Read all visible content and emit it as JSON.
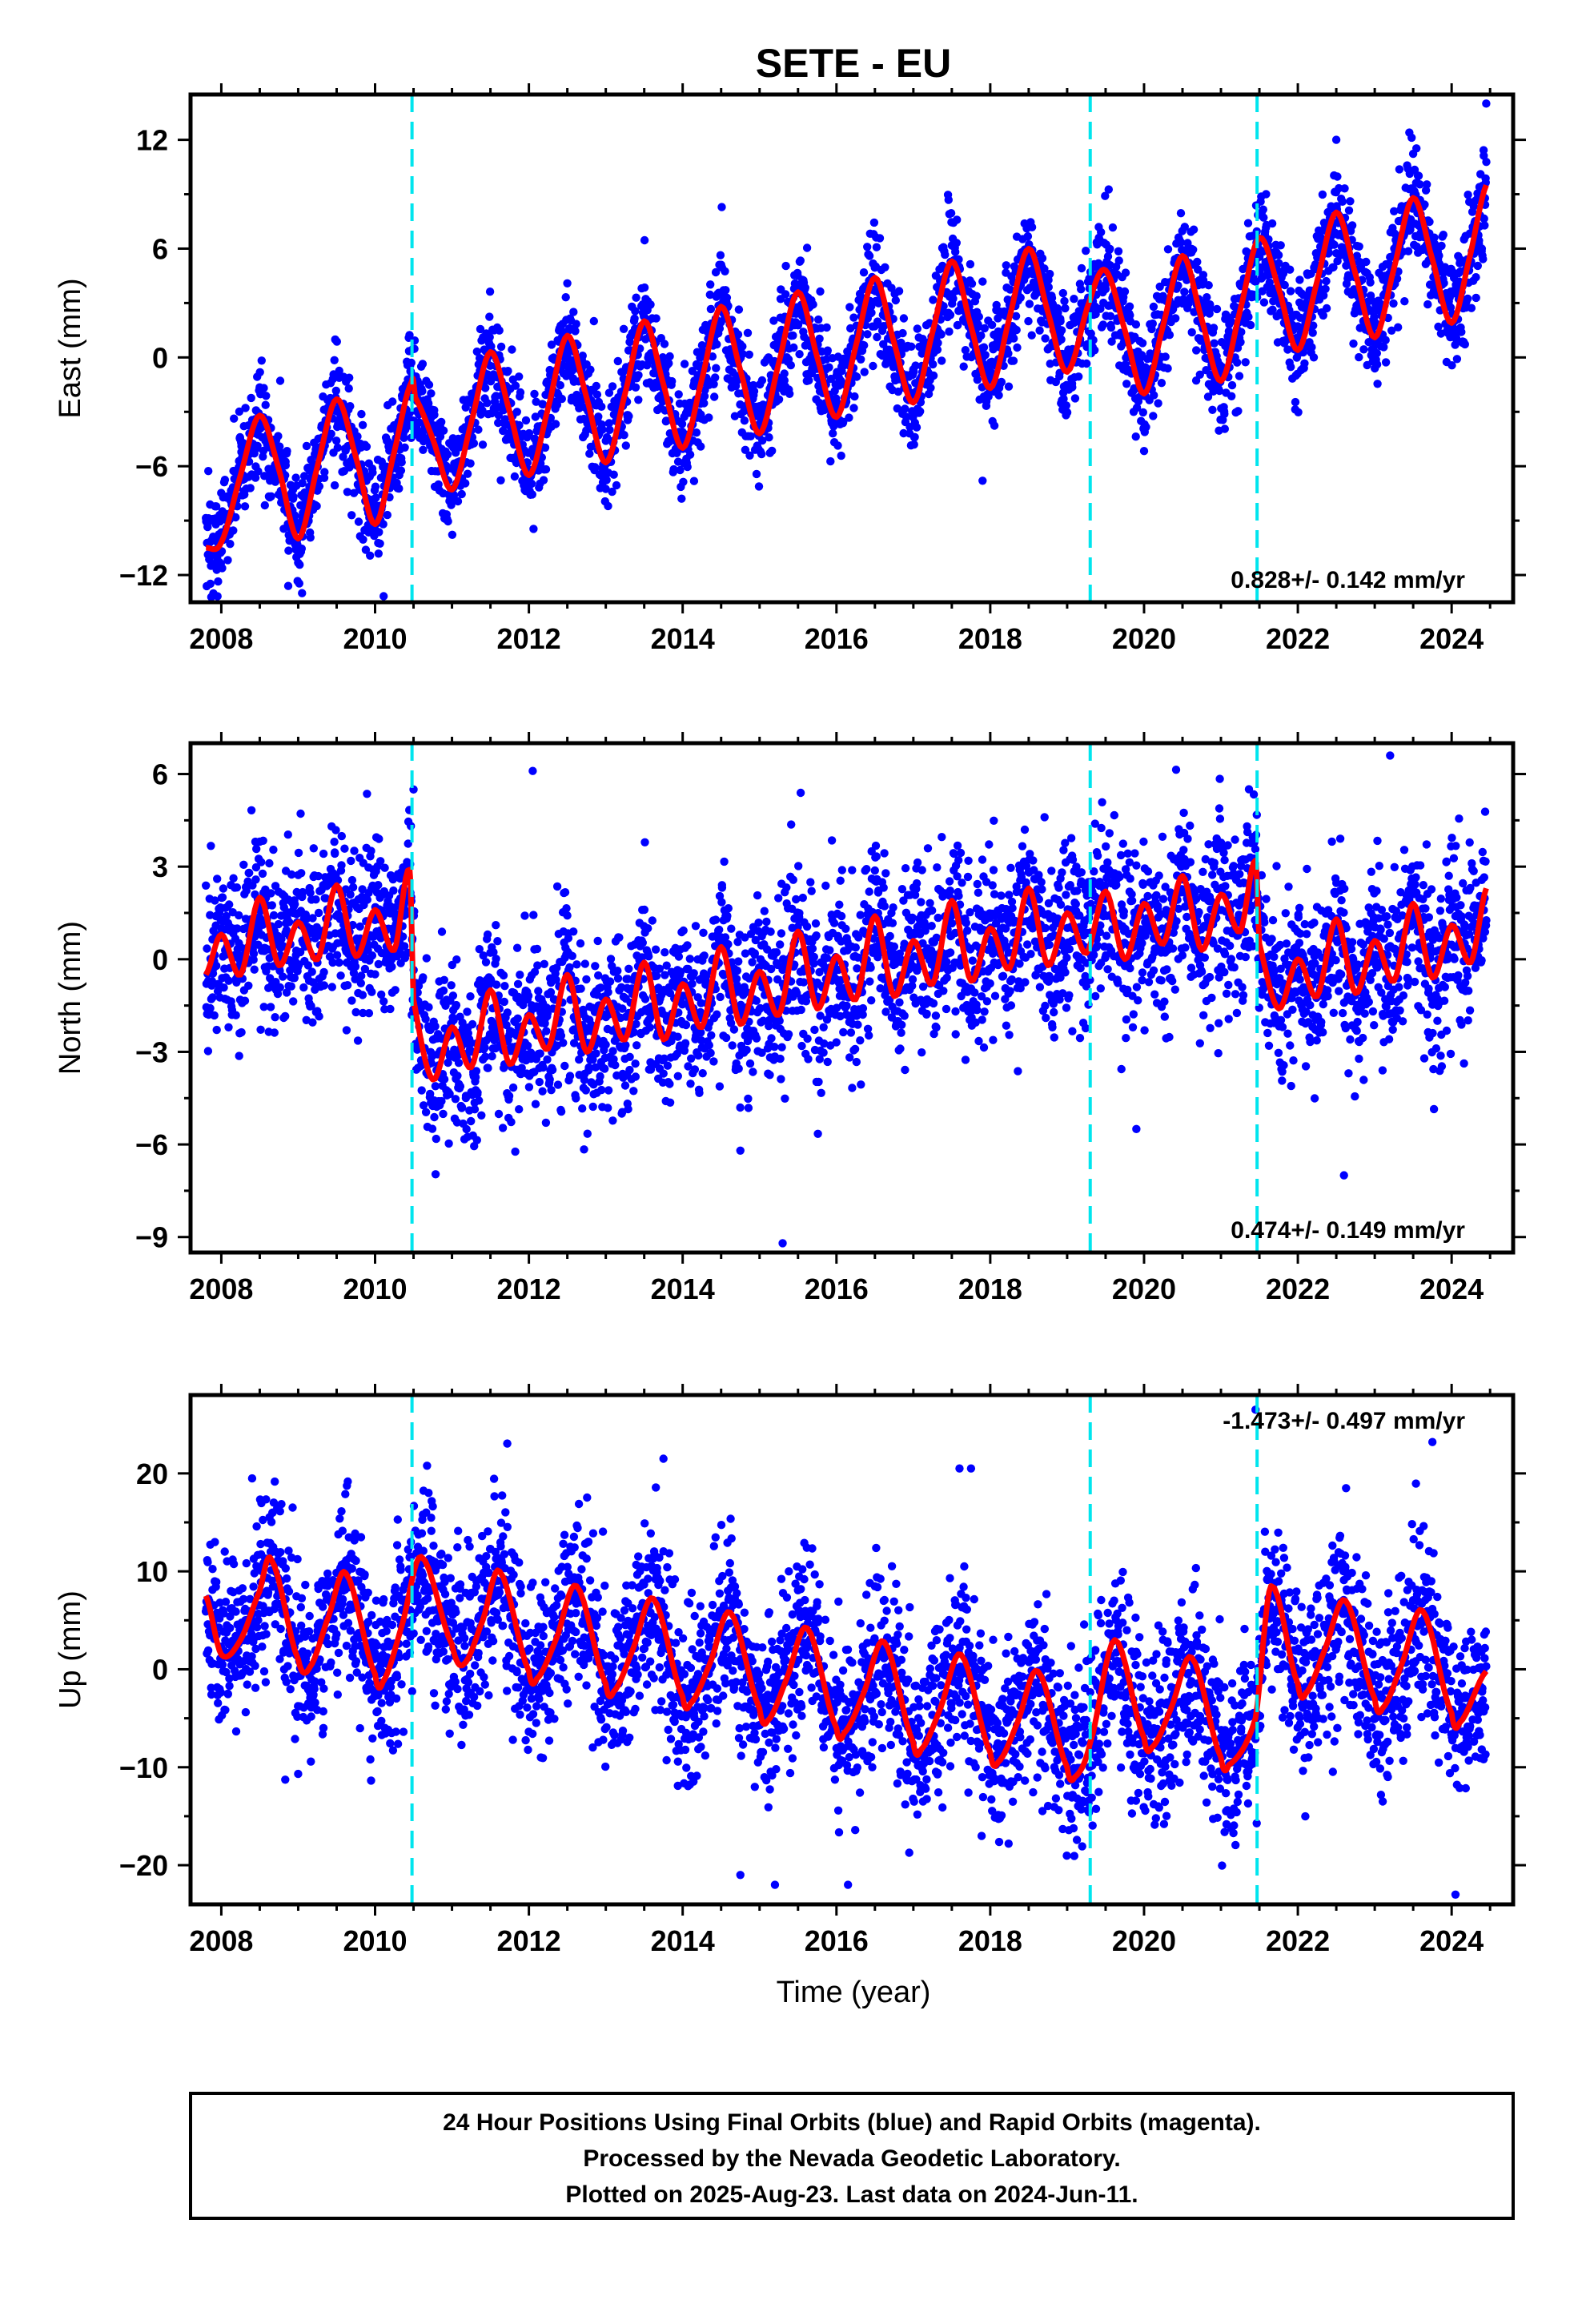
{
  "figure": {
    "title": "SETE - EU",
    "xlabel": "Time (year)",
    "footer": [
      "24 Hour Positions Using Final Orbits (blue) and Rapid Orbits (magenta).",
      "Processed by the Nevada Geodetic Laboratory.",
      "Plotted on 2025-Aug-23. Last data on 2024-Jun-11."
    ]
  },
  "colors": {
    "observations": "#0000ff",
    "model": "#ff0000",
    "steps": "#00e5ee",
    "axes": "#000000"
  },
  "chart_data": [
    {
      "type": "scatter",
      "panel": "east",
      "ylabel": "East (mm)",
      "rate_label": "0.828+/- 0.142 mm/yr",
      "rate_position": "bottom-right",
      "xlim": [
        2007.6,
        2024.8
      ],
      "ylim": [
        -13.5,
        14.5
      ],
      "x_ticks": [
        "2008",
        "2010",
        "2012",
        "2014",
        "2016",
        "2018",
        "2020",
        "2022",
        "2024"
      ],
      "y_ticks": [
        12,
        6,
        0,
        -6,
        -12
      ],
      "y_tick_labels": [
        "12",
        "6",
        "0",
        "−6",
        "−12"
      ],
      "step_epochs": [
        2010.48,
        2019.3,
        2021.47
      ],
      "model_curve": [
        [
          2007.8,
          -10.5
        ],
        [
          2008.0,
          -10.2
        ],
        [
          2008.25,
          -6.5
        ],
        [
          2008.5,
          -3.2
        ],
        [
          2008.75,
          -6.2
        ],
        [
          2009.0,
          -10.0
        ],
        [
          2009.25,
          -6.0
        ],
        [
          2009.5,
          -2.3
        ],
        [
          2009.75,
          -5.5
        ],
        [
          2010.0,
          -9.2
        ],
        [
          2010.25,
          -5.2
        ],
        [
          2010.48,
          -1.3
        ],
        [
          2010.52,
          -2.2
        ],
        [
          2010.75,
          -4.5
        ],
        [
          2011.0,
          -7.3
        ],
        [
          2011.25,
          -3.6
        ],
        [
          2011.5,
          0.3
        ],
        [
          2011.75,
          -3.0
        ],
        [
          2012.0,
          -6.5
        ],
        [
          2012.25,
          -2.8
        ],
        [
          2012.5,
          1.2
        ],
        [
          2012.75,
          -2.2
        ],
        [
          2013.0,
          -5.8
        ],
        [
          2013.25,
          -2.0
        ],
        [
          2013.5,
          2.0
        ],
        [
          2013.75,
          -1.5
        ],
        [
          2014.0,
          -5.0
        ],
        [
          2014.25,
          -1.2
        ],
        [
          2014.5,
          2.8
        ],
        [
          2014.75,
          -0.7
        ],
        [
          2015.0,
          -4.2
        ],
        [
          2015.25,
          -0.3
        ],
        [
          2015.5,
          3.6
        ],
        [
          2015.75,
          0.0
        ],
        [
          2016.0,
          -3.3
        ],
        [
          2016.25,
          0.6
        ],
        [
          2016.5,
          4.4
        ],
        [
          2016.75,
          0.8
        ],
        [
          2017.0,
          -2.5
        ],
        [
          2017.25,
          1.4
        ],
        [
          2017.5,
          5.3
        ],
        [
          2017.75,
          1.7
        ],
        [
          2018.0,
          -1.7
        ],
        [
          2018.25,
          2.2
        ],
        [
          2018.5,
          6.0
        ],
        [
          2018.75,
          2.5
        ],
        [
          2019.0,
          -0.8
        ],
        [
          2019.3,
          3.2
        ],
        [
          2019.5,
          4.8
        ],
        [
          2019.75,
          1.5
        ],
        [
          2020.0,
          -2.0
        ],
        [
          2020.25,
          1.8
        ],
        [
          2020.5,
          5.6
        ],
        [
          2020.75,
          2.1
        ],
        [
          2021.0,
          -1.3
        ],
        [
          2021.25,
          2.6
        ],
        [
          2021.5,
          6.6
        ],
        [
          2021.75,
          3.8
        ],
        [
          2022.0,
          0.4
        ],
        [
          2022.25,
          4.2
        ],
        [
          2022.5,
          8.0
        ],
        [
          2022.75,
          4.6
        ],
        [
          2023.0,
          1.1
        ],
        [
          2023.25,
          4.9
        ],
        [
          2023.5,
          8.8
        ],
        [
          2023.75,
          5.4
        ],
        [
          2024.0,
          1.9
        ],
        [
          2024.25,
          5.8
        ],
        [
          2024.45,
          9.5
        ]
      ],
      "trend": {
        "start": [
          2007.8,
          -10.5
        ],
        "end": [
          2024.45,
          5.5
        ]
      },
      "seasonal_amplitude_mm": 3.5,
      "scatter_mm": 1.5,
      "outliers": [
        [
          2024.45,
          14.0
        ],
        [
          2022.5,
          12.0
        ],
        [
          2023.45,
          12.4
        ],
        [
          2009.05,
          -13.0
        ],
        [
          2017.9,
          -6.8
        ]
      ]
    },
    {
      "type": "scatter",
      "panel": "north",
      "ylabel": "North (mm)",
      "rate_label": "0.474+/- 0.149 mm/yr",
      "rate_position": "bottom-right",
      "xlim": [
        2007.6,
        2024.8
      ],
      "ylim": [
        -9.5,
        7.0
      ],
      "x_ticks": [
        "2008",
        "2010",
        "2012",
        "2014",
        "2016",
        "2018",
        "2020",
        "2022",
        "2024"
      ],
      "y_ticks": [
        6,
        3,
        0,
        -3,
        -6,
        -9
      ],
      "y_tick_labels": [
        "6",
        "3",
        "0",
        "−3",
        "−6",
        "−9"
      ],
      "step_epochs": [
        2010.48,
        2019.3,
        2021.47
      ],
      "model_curve": [
        [
          2007.8,
          -0.5
        ],
        [
          2008.0,
          0.8
        ],
        [
          2008.25,
          -0.5
        ],
        [
          2008.5,
          2.0
        ],
        [
          2008.75,
          -0.2
        ],
        [
          2009.0,
          1.2
        ],
        [
          2009.25,
          0.0
        ],
        [
          2009.5,
          2.4
        ],
        [
          2009.75,
          0.1
        ],
        [
          2010.0,
          1.6
        ],
        [
          2010.25,
          0.3
        ],
        [
          2010.45,
          2.9
        ],
        [
          2010.5,
          -1.3
        ],
        [
          2010.75,
          -3.9
        ],
        [
          2011.0,
          -2.2
        ],
        [
          2011.25,
          -3.5
        ],
        [
          2011.5,
          -1.0
        ],
        [
          2011.75,
          -3.4
        ],
        [
          2012.0,
          -1.8
        ],
        [
          2012.25,
          -2.9
        ],
        [
          2012.5,
          -0.5
        ],
        [
          2012.75,
          -3.0
        ],
        [
          2013.0,
          -1.3
        ],
        [
          2013.25,
          -2.6
        ],
        [
          2013.5,
          -0.1
        ],
        [
          2013.75,
          -2.6
        ],
        [
          2014.0,
          -0.8
        ],
        [
          2014.25,
          -2.2
        ],
        [
          2014.5,
          0.4
        ],
        [
          2014.75,
          -2.1
        ],
        [
          2015.0,
          -0.4
        ],
        [
          2015.25,
          -1.8
        ],
        [
          2015.5,
          0.9
        ],
        [
          2015.75,
          -1.6
        ],
        [
          2016.0,
          0.1
        ],
        [
          2016.25,
          -1.3
        ],
        [
          2016.5,
          1.4
        ],
        [
          2016.75,
          -1.2
        ],
        [
          2017.0,
          0.6
        ],
        [
          2017.25,
          -0.8
        ],
        [
          2017.5,
          1.9
        ],
        [
          2017.75,
          -0.7
        ],
        [
          2018.0,
          1.0
        ],
        [
          2018.25,
          -0.3
        ],
        [
          2018.5,
          2.3
        ],
        [
          2018.75,
          -0.2
        ],
        [
          2019.0,
          1.5
        ],
        [
          2019.25,
          0.2
        ],
        [
          2019.5,
          2.2
        ],
        [
          2019.75,
          0.0
        ],
        [
          2020.0,
          1.8
        ],
        [
          2020.25,
          0.5
        ],
        [
          2020.5,
          2.7
        ],
        [
          2020.75,
          0.3
        ],
        [
          2021.0,
          2.1
        ],
        [
          2021.25,
          0.9
        ],
        [
          2021.45,
          3.2
        ],
        [
          2021.5,
          0.5
        ],
        [
          2021.75,
          -1.6
        ],
        [
          2022.0,
          0.0
        ],
        [
          2022.25,
          -1.2
        ],
        [
          2022.5,
          1.3
        ],
        [
          2022.75,
          -1.1
        ],
        [
          2023.0,
          0.6
        ],
        [
          2023.25,
          -0.7
        ],
        [
          2023.5,
          1.8
        ],
        [
          2023.75,
          -0.6
        ],
        [
          2024.0,
          1.1
        ],
        [
          2024.25,
          -0.1
        ],
        [
          2024.45,
          2.3
        ]
      ],
      "scatter_mm": 1.4,
      "outliers": [
        [
          2023.2,
          6.6
        ],
        [
          2012.05,
          6.1
        ],
        [
          2015.3,
          -9.2
        ],
        [
          2014.75,
          -6.2
        ],
        [
          2022.6,
          -7.0
        ],
        [
          2019.9,
          -5.5
        ],
        [
          2010.5,
          5.5
        ]
      ]
    },
    {
      "type": "scatter",
      "panel": "up",
      "ylabel": "Up (mm)",
      "rate_label": "-1.473+/- 0.497 mm/yr",
      "rate_position": "top-right",
      "xlim": [
        2007.6,
        2024.8
      ],
      "ylim": [
        -24.0,
        28.0
      ],
      "x_ticks": [
        "2008",
        "2010",
        "2012",
        "2014",
        "2016",
        "2018",
        "2020",
        "2022",
        "2024"
      ],
      "y_ticks": [
        20,
        10,
        0,
        -10,
        -20
      ],
      "y_tick_labels": [
        "20",
        "10",
        "0",
        "−10",
        "−20"
      ],
      "step_epochs": [
        2010.48,
        2019.3,
        2021.47
      ],
      "model_curve": [
        [
          2007.8,
          7.5
        ],
        [
          2008.0,
          1.5
        ],
        [
          2008.25,
          3.0
        ],
        [
          2008.5,
          8.0
        ],
        [
          2008.65,
          11.2
        ],
        [
          2009.0,
          1.0
        ],
        [
          2009.15,
          0.2
        ],
        [
          2009.4,
          5.5
        ],
        [
          2009.62,
          9.8
        ],
        [
          2010.0,
          -0.5
        ],
        [
          2010.1,
          -1.3
        ],
        [
          2010.35,
          4.5
        ],
        [
          2010.6,
          11.5
        ],
        [
          2011.0,
          2.5
        ],
        [
          2011.15,
          0.5
        ],
        [
          2011.4,
          5.0
        ],
        [
          2011.62,
          10.0
        ],
        [
          2012.0,
          -0.2
        ],
        [
          2012.1,
          -1.0
        ],
        [
          2012.35,
          3.0
        ],
        [
          2012.62,
          8.5
        ],
        [
          2013.0,
          -1.5
        ],
        [
          2013.1,
          -2.3
        ],
        [
          2013.35,
          2.0
        ],
        [
          2013.62,
          7.2
        ],
        [
          2014.0,
          -2.8
        ],
        [
          2014.1,
          -3.5
        ],
        [
          2014.35,
          0.5
        ],
        [
          2014.62,
          5.8
        ],
        [
          2015.0,
          -4.0
        ],
        [
          2015.1,
          -5.3
        ],
        [
          2015.35,
          -1.0
        ],
        [
          2015.62,
          4.2
        ],
        [
          2016.0,
          -6.0
        ],
        [
          2016.1,
          -6.5
        ],
        [
          2016.35,
          -2.5
        ],
        [
          2016.62,
          2.8
        ],
        [
          2017.0,
          -7.5
        ],
        [
          2017.1,
          -8.2
        ],
        [
          2017.35,
          -4.0
        ],
        [
          2017.62,
          1.5
        ],
        [
          2018.0,
          -8.5
        ],
        [
          2018.1,
          -9.5
        ],
        [
          2018.35,
          -5.5
        ],
        [
          2018.62,
          -0.2
        ],
        [
          2019.0,
          -10.0
        ],
        [
          2019.1,
          -11.0
        ],
        [
          2019.3,
          -7.5
        ],
        [
          2019.62,
          3.0
        ],
        [
          2020.0,
          -7.0
        ],
        [
          2020.1,
          -8.0
        ],
        [
          2020.35,
          -4.0
        ],
        [
          2020.62,
          1.2
        ],
        [
          2021.0,
          -9.0
        ],
        [
          2021.1,
          -9.8
        ],
        [
          2021.45,
          -5.0
        ],
        [
          2021.65,
          8.5
        ],
        [
          2022.0,
          -1.5
        ],
        [
          2022.1,
          -2.5
        ],
        [
          2022.35,
          2.0
        ],
        [
          2022.62,
          7.0
        ],
        [
          2023.0,
          -3.0
        ],
        [
          2023.1,
          -4.0
        ],
        [
          2023.35,
          0.5
        ],
        [
          2023.62,
          6.0
        ],
        [
          2024.0,
          -4.5
        ],
        [
          2024.1,
          -5.5
        ],
        [
          2024.45,
          -0.2
        ]
      ],
      "scatter_mm": 4.5,
      "outliers": [
        [
          2021.45,
          26.5
        ],
        [
          2023.75,
          23.2
        ],
        [
          2024.05,
          -23.0
        ],
        [
          2016.15,
          -22.0
        ],
        [
          2015.2,
          -22.0
        ],
        [
          2014.75,
          -21.0
        ],
        [
          2017.6,
          20.5
        ],
        [
          2017.75,
          20.5
        ],
        [
          2013.75,
          21.5
        ]
      ]
    }
  ]
}
